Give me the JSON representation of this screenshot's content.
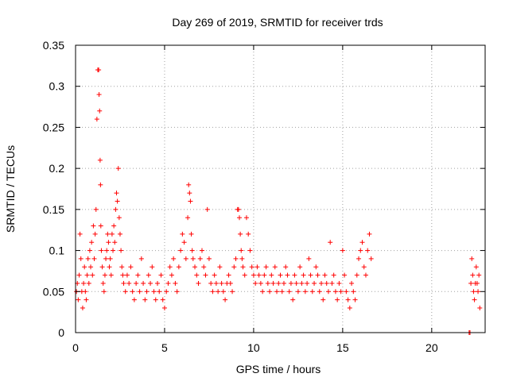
{
  "chart_data": {
    "type": "scatter",
    "title": "Day 269 of 2019, SRMTID for receiver trds",
    "xlabel": "GPS time / hours",
    "ylabel": "SRMTID / TECUs",
    "xlim": [
      0,
      23
    ],
    "ylim": [
      0,
      0.35
    ],
    "x_ticks": [
      0,
      5,
      10,
      15,
      20
    ],
    "y_ticks": [
      0,
      0.05,
      0.1,
      0.15,
      0.2,
      0.25,
      0.3,
      0.35
    ],
    "x_tick_labels": [
      "0",
      "5",
      "10",
      "15",
      "20"
    ],
    "y_tick_labels": [
      "0",
      "0.05",
      "0.1",
      "0.15",
      "0.2",
      "0.25",
      "0.3",
      "0.35"
    ],
    "grid": true,
    "marker": "plus",
    "color": "#ff0000",
    "series": [
      {
        "x": [
          0.05,
          0.1,
          0.15,
          0.2,
          0.25,
          0.3,
          0.35,
          0.4,
          0.45,
          0.5,
          0.55,
          0.6,
          0.65,
          0.7,
          0.75,
          0.8,
          0.85,
          0.9,
          0.95,
          1.0,
          1.05,
          1.1,
          1.15,
          1.2,
          1.25,
          1.3,
          1.32,
          1.35,
          1.38,
          1.4,
          1.42,
          1.45,
          1.5,
          1.55,
          1.6,
          1.65,
          1.7,
          1.75,
          1.8,
          1.85,
          1.9,
          1.95,
          2.0,
          2.05,
          2.1,
          2.15,
          2.2,
          2.25,
          2.3,
          2.35,
          2.4,
          2.45,
          2.5,
          2.55,
          2.6,
          2.65,
          2.7,
          2.8,
          2.9,
          3.0,
          3.1,
          3.2,
          3.3,
          3.4,
          3.5,
          3.6,
          3.7,
          3.8,
          3.9,
          4.0,
          4.1,
          4.2,
          4.3,
          4.4,
          4.5,
          4.6,
          4.7,
          4.8,
          4.9,
          5.0,
          5.1,
          5.2,
          5.3,
          5.4,
          5.5,
          5.6,
          5.7,
          5.8,
          5.9,
          6.0,
          6.1,
          6.2,
          6.3,
          6.35,
          6.4,
          6.45,
          6.5,
          6.55,
          6.6,
          6.7,
          6.8,
          6.9,
          7.0,
          7.1,
          7.2,
          7.3,
          7.4,
          7.5,
          7.6,
          7.7,
          7.8,
          7.9,
          8.0,
          8.1,
          8.2,
          8.3,
          8.4,
          8.5,
          8.6,
          8.7,
          8.8,
          8.9,
          9.0,
          9.1,
          9.15,
          9.2,
          9.25,
          9.3,
          9.35,
          9.4,
          9.5,
          9.6,
          9.7,
          9.8,
          9.9,
          10.0,
          10.1,
          10.2,
          10.3,
          10.4,
          10.5,
          10.6,
          10.7,
          10.8,
          10.9,
          11.0,
          11.1,
          11.2,
          11.3,
          11.4,
          11.5,
          11.6,
          11.7,
          11.8,
          11.9,
          12.0,
          12.1,
          12.2,
          12.3,
          12.4,
          12.5,
          12.6,
          12.7,
          12.8,
          12.9,
          13.0,
          13.1,
          13.2,
          13.3,
          13.4,
          13.5,
          13.6,
          13.7,
          13.8,
          13.9,
          14.0,
          14.1,
          14.2,
          14.3,
          14.4,
          14.5,
          14.6,
          14.7,
          14.8,
          14.9,
          15.0,
          15.1,
          15.2,
          15.3,
          15.4,
          15.5,
          15.6,
          15.7,
          15.8,
          15.9,
          16.0,
          16.1,
          16.2,
          16.3,
          16.4,
          16.5,
          16.6,
          22.1,
          22.15,
          22.2,
          22.25,
          22.3,
          22.35,
          22.4,
          22.45,
          22.5,
          22.55,
          22.6,
          22.65,
          22.7
        ],
        "y": [
          0.05,
          0.06,
          0.04,
          0.07,
          0.12,
          0.09,
          0.05,
          0.03,
          0.06,
          0.08,
          0.05,
          0.04,
          0.07,
          0.09,
          0.06,
          0.1,
          0.08,
          0.11,
          0.07,
          0.13,
          0.09,
          0.12,
          0.15,
          0.26,
          0.32,
          0.32,
          0.29,
          0.27,
          0.21,
          0.18,
          0.13,
          0.1,
          0.08,
          0.06,
          0.05,
          0.07,
          0.09,
          0.1,
          0.12,
          0.11,
          0.08,
          0.09,
          0.07,
          0.12,
          0.1,
          0.13,
          0.11,
          0.15,
          0.17,
          0.16,
          0.2,
          0.14,
          0.12,
          0.1,
          0.08,
          0.07,
          0.06,
          0.05,
          0.07,
          0.06,
          0.08,
          0.05,
          0.04,
          0.06,
          0.07,
          0.05,
          0.09,
          0.06,
          0.04,
          0.05,
          0.07,
          0.06,
          0.08,
          0.05,
          0.04,
          0.06,
          0.05,
          0.07,
          0.04,
          0.03,
          0.05,
          0.06,
          0.08,
          0.07,
          0.09,
          0.06,
          0.05,
          0.08,
          0.1,
          0.12,
          0.11,
          0.09,
          0.14,
          0.18,
          0.17,
          0.16,
          0.12,
          0.1,
          0.09,
          0.08,
          0.07,
          0.06,
          0.09,
          0.1,
          0.08,
          0.07,
          0.15,
          0.09,
          0.06,
          0.05,
          0.07,
          0.06,
          0.05,
          0.08,
          0.06,
          0.05,
          0.04,
          0.06,
          0.07,
          0.06,
          0.05,
          0.08,
          0.09,
          0.15,
          0.15,
          0.14,
          0.12,
          0.1,
          0.09,
          0.08,
          0.07,
          0.14,
          0.12,
          0.1,
          0.08,
          0.07,
          0.06,
          0.08,
          0.07,
          0.06,
          0.05,
          0.07,
          0.08,
          0.06,
          0.05,
          0.07,
          0.06,
          0.08,
          0.05,
          0.06,
          0.07,
          0.05,
          0.06,
          0.08,
          0.07,
          0.05,
          0.06,
          0.04,
          0.07,
          0.06,
          0.05,
          0.08,
          0.06,
          0.07,
          0.05,
          0.06,
          0.09,
          0.07,
          0.05,
          0.06,
          0.08,
          0.07,
          0.05,
          0.06,
          0.04,
          0.07,
          0.06,
          0.05,
          0.11,
          0.06,
          0.07,
          0.05,
          0.04,
          0.06,
          0.05,
          0.1,
          0.07,
          0.05,
          0.04,
          0.03,
          0.06,
          0.05,
          0.04,
          0.07,
          0.09,
          0.1,
          0.11,
          0.08,
          0.07,
          0.1,
          0.12,
          0.09,
          0.0,
          0.0,
          0.06,
          0.09,
          0.07,
          0.05,
          0.04,
          0.06,
          0.08,
          0.06,
          0.05,
          0.07,
          0.03
        ]
      }
    ]
  }
}
